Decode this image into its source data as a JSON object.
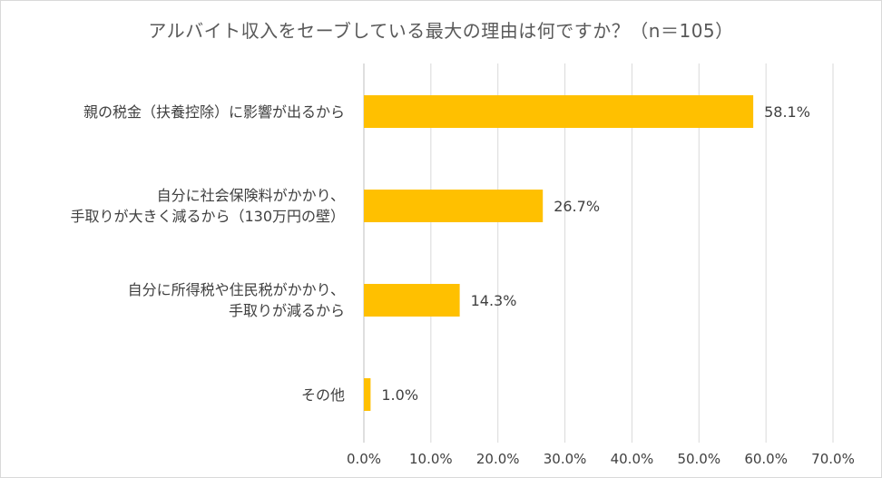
{
  "chart_data": {
    "type": "bar",
    "orientation": "horizontal",
    "title": "アルバイト収入をセーブしている最大の理由は何ですか？（n＝105）",
    "xlabel": "",
    "ylabel": "",
    "categories": [
      "親の税金（扶養控除）に影響が出るから",
      "自分に社会保険料がかかり、\n手取りが大きく減るから（130万円の壁）",
      "自分に所得税や住民税がかかり、\n手取りが減るから",
      "その他"
    ],
    "values": [
      58.1,
      26.7,
      14.3,
      1.0
    ],
    "value_labels": [
      "58.1%",
      "26.7%",
      "14.3%",
      "1.0%"
    ],
    "xlim": [
      0,
      70
    ],
    "x_ticks": [
      0,
      10,
      20,
      30,
      40,
      50,
      60,
      70
    ],
    "x_tick_labels": [
      "0.0%",
      "10.0%",
      "20.0%",
      "30.0%",
      "40.0%",
      "50.0%",
      "60.0%",
      "70.0%"
    ],
    "grid": true,
    "legend": "none",
    "bar_color": "#FFC000",
    "grid_color": "#d9d9d9"
  }
}
